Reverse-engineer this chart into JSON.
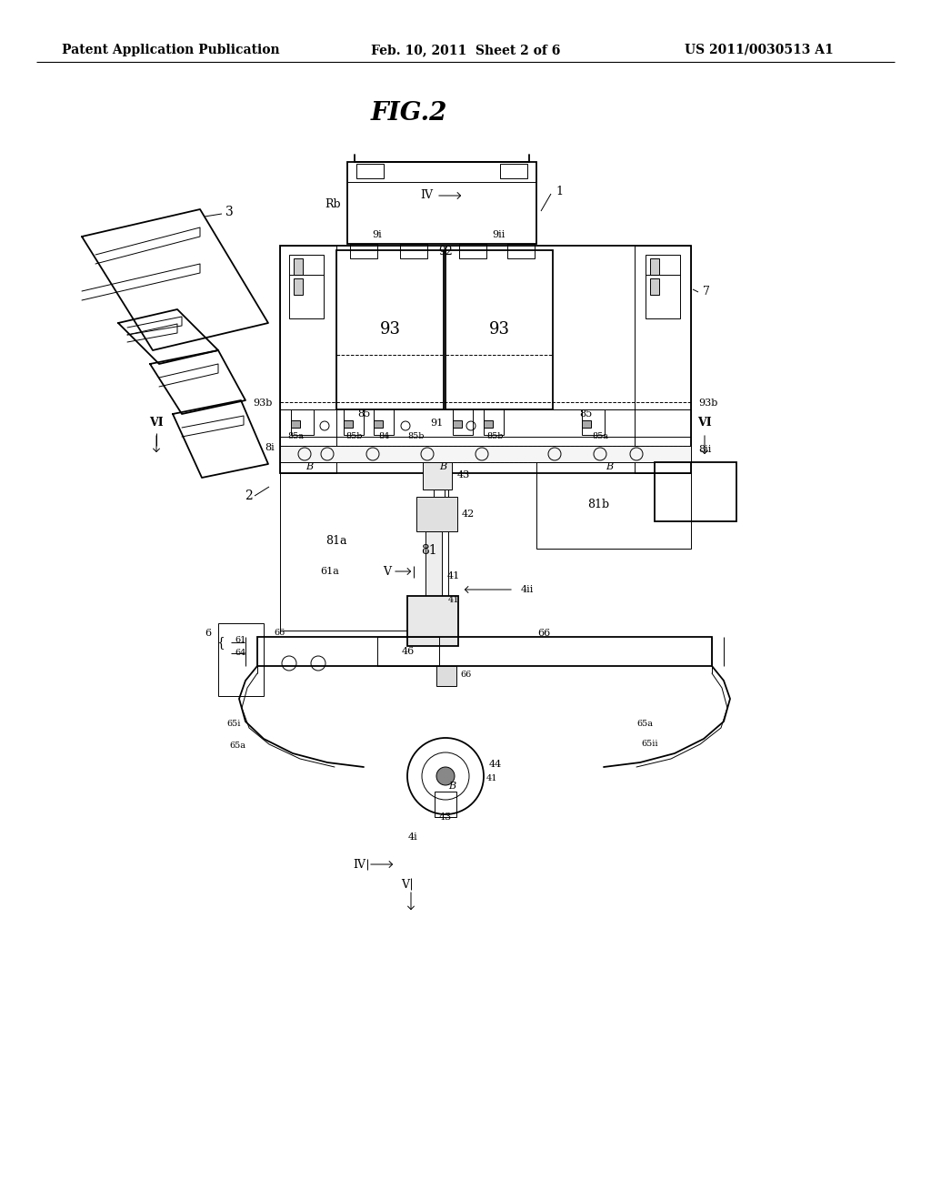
{
  "bg_color": "#ffffff",
  "header_left": "Patent Application Publication",
  "header_center": "Feb. 10, 2011  Sheet 2 of 6",
  "header_right": "US 2011/0030513 A1",
  "figure_title": "FIG.2"
}
